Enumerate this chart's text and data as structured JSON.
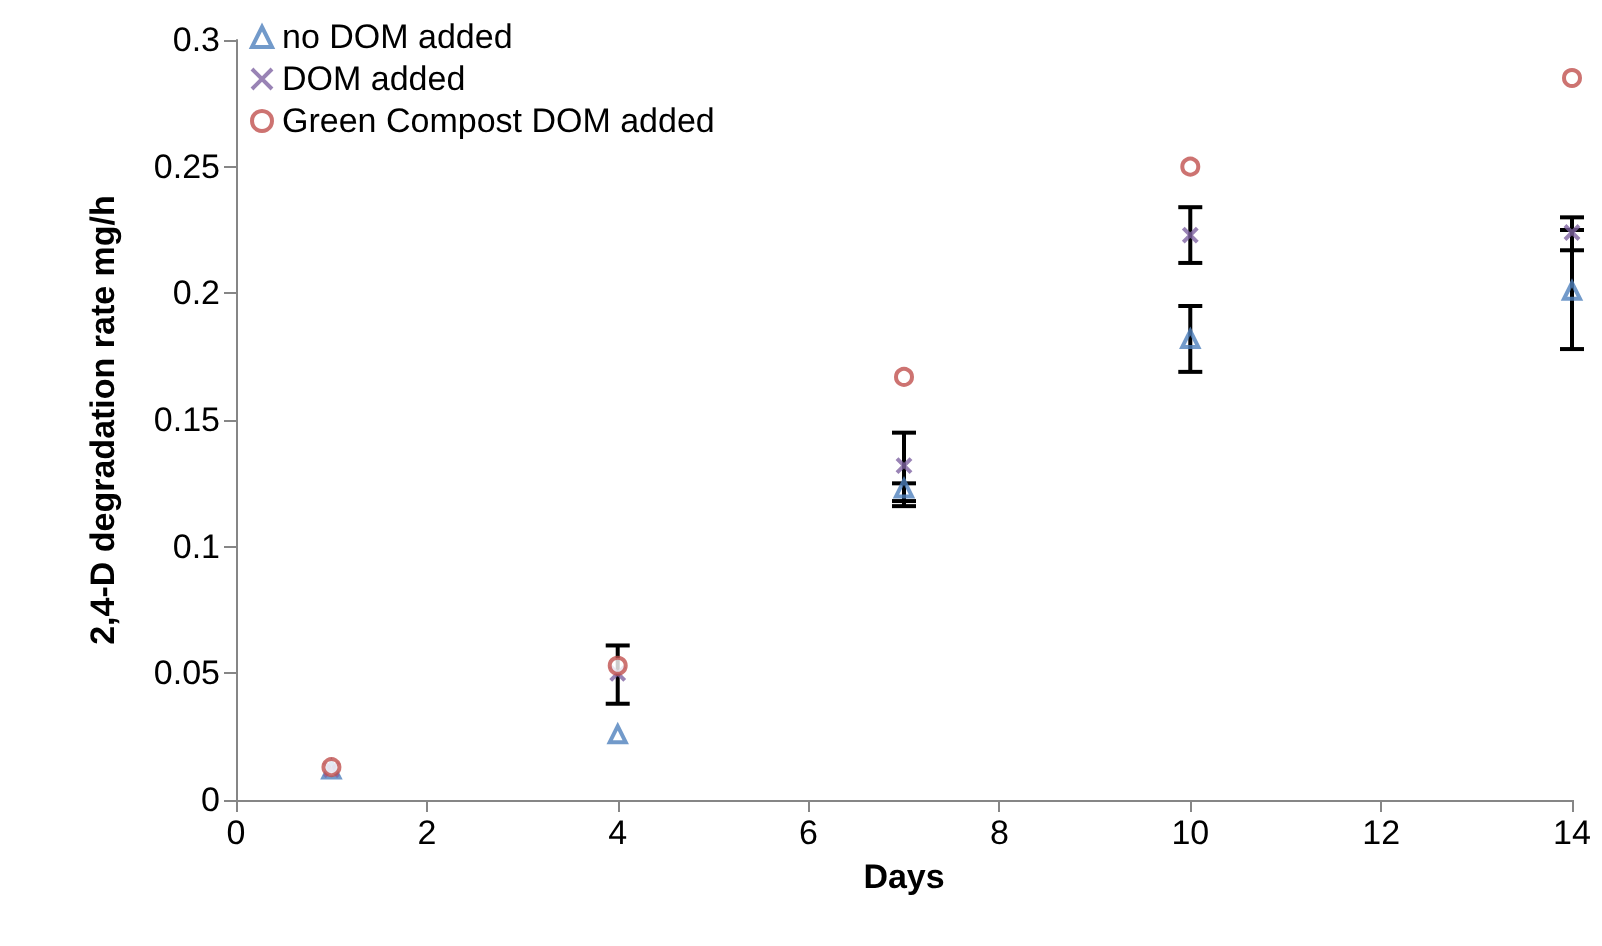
{
  "chart_data": {
    "type": "scatter",
    "xlabel": "Days",
    "ylabel": "2,4-D degradation rate mg/h",
    "x": [
      1,
      4,
      7,
      10,
      14
    ],
    "series": [
      {
        "name": "no DOM added",
        "color": "#4f81bd",
        "marker": "triangle",
        "values": [
          0.012,
          0.026,
          0.123,
          0.182,
          0.201
        ],
        "errors": [
          null,
          null,
          [
            0.116,
            0.125
          ],
          [
            0.169,
            0.195
          ],
          [
            0.178,
            0.225
          ]
        ]
      },
      {
        "name": "DOM added",
        "color": "#8064a2",
        "marker": "cross",
        "values": [
          0.012,
          0.05,
          0.132,
          0.223,
          0.224
        ],
        "errors": [
          null,
          [
            0.038,
            0.061
          ],
          [
            0.118,
            0.145
          ],
          [
            0.212,
            0.234
          ],
          [
            0.217,
            0.23
          ]
        ]
      },
      {
        "name": "Green Compost DOM added",
        "color": "#c0504d",
        "marker": "circle",
        "values": [
          0.013,
          0.053,
          0.167,
          0.25,
          0.285
        ]
      }
    ],
    "xlim": [
      0,
      14
    ],
    "xticks": [
      0,
      2,
      4,
      6,
      8,
      10,
      12,
      14
    ],
    "ylim": [
      0,
      0.3
    ],
    "yticks": [
      0,
      0.05,
      0.1,
      0.15,
      0.2,
      0.25,
      0.3
    ],
    "grid": false,
    "legend": "top left"
  }
}
